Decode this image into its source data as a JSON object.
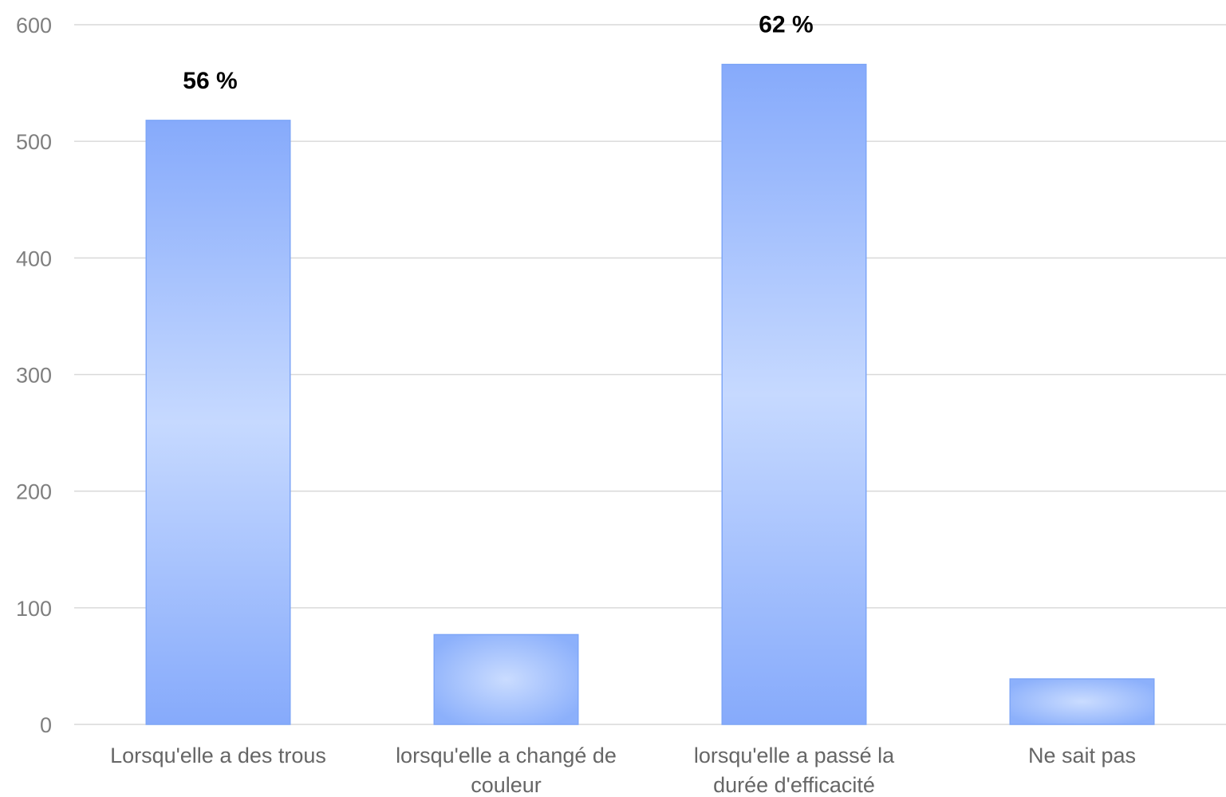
{
  "chart_data": {
    "type": "bar",
    "categories": [
      [
        "Lorsqu'elle a des trous"
      ],
      [
        "lorsqu'elle a changé de",
        "couleur"
      ],
      [
        "lorsqu'elle a passé la",
        "durée d'efficacité"
      ],
      [
        "Ne sait pas"
      ]
    ],
    "values": [
      518,
      77,
      566,
      39
    ],
    "data_labels": [
      "56 %",
      "",
      "62 %",
      ""
    ],
    "ylim": [
      0,
      600
    ],
    "yticks": [
      "0",
      "100",
      "200",
      "300",
      "400",
      "500",
      "600"
    ],
    "grid": true,
    "legend": "none",
    "colors": {
      "bar_edge": "#7ea6f7",
      "bar_center": "#c9dbff",
      "grid": "#d9d9d9"
    }
  }
}
